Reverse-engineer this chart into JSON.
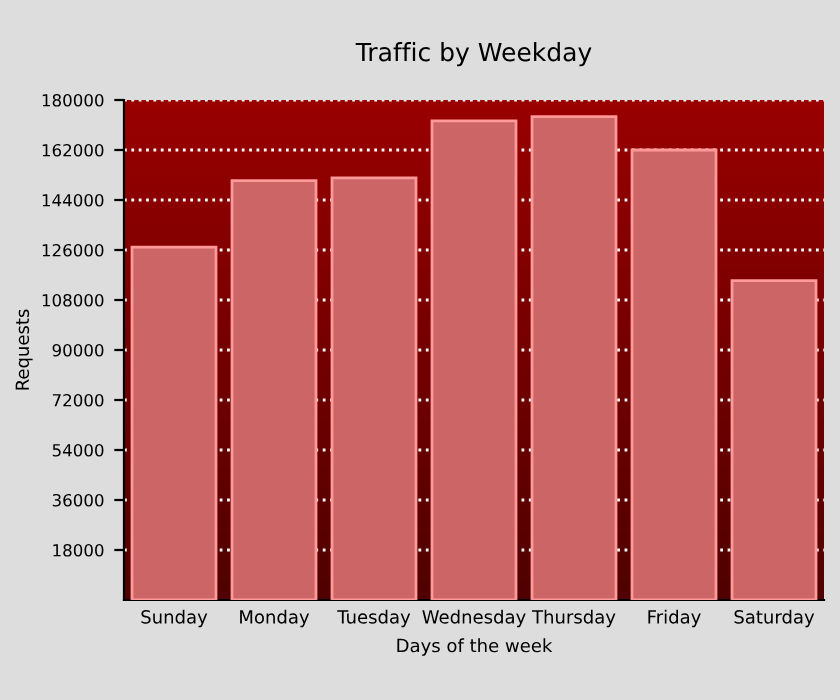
{
  "chart_data": {
    "type": "bar",
    "title": "Traffic by Weekday",
    "xlabel": "Days of the week",
    "ylabel": "Requests",
    "categories": [
      "Sunday",
      "Monday",
      "Tuesday",
      "Wednesday",
      "Thursday",
      "Friday",
      "Saturday"
    ],
    "values": [
      127000,
      151000,
      152000,
      172500,
      174000,
      162000,
      115000
    ],
    "color": "#cc6666",
    "ylim": [
      0,
      180000
    ],
    "yticks": [
      18000,
      36000,
      54000,
      72000,
      90000,
      108000,
      126000,
      144000,
      162000,
      180000
    ],
    "grid": "y",
    "legend": false
  }
}
